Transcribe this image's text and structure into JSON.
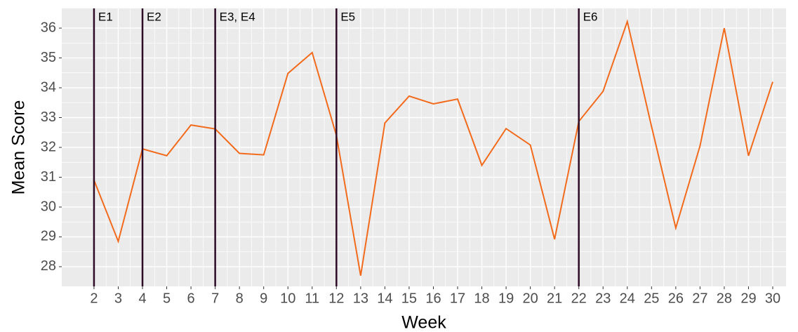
{
  "chart_data": {
    "type": "line",
    "x_label": "Week",
    "y_label": "Mean Score",
    "x": [
      2,
      3,
      4,
      5,
      6,
      7,
      8,
      9,
      10,
      11,
      12,
      13,
      14,
      15,
      16,
      17,
      18,
      19,
      20,
      21,
      22,
      23,
      24,
      25,
      26,
      27,
      28,
      29,
      30
    ],
    "series": [
      {
        "name": "Mean Score",
        "color": "#f26b1d",
        "values": [
          30.9,
          28.85,
          31.95,
          31.72,
          32.75,
          32.62,
          31.8,
          31.75,
          34.48,
          35.18,
          32.4,
          27.7,
          32.82,
          33.72,
          33.46,
          33.62,
          31.4,
          32.63,
          32.08,
          28.92,
          32.87,
          33.88,
          36.22,
          32.7,
          29.3,
          32.05,
          36.0,
          31.72,
          34.2
        ]
      }
    ],
    "events": [
      {
        "label": "E1",
        "week": 2
      },
      {
        "label": "E2",
        "week": 4
      },
      {
        "label": "E3, E4",
        "week": 7
      },
      {
        "label": "E5",
        "week": 12
      },
      {
        "label": "E6",
        "week": 22
      }
    ],
    "event_color": "#2d0a26",
    "xlim": [
      0.67,
      30.55
    ],
    "ylim": [
      27.34,
      36.66
    ],
    "xticks": [
      2,
      3,
      4,
      5,
      6,
      7,
      8,
      9,
      10,
      11,
      12,
      13,
      14,
      15,
      16,
      17,
      18,
      19,
      20,
      21,
      22,
      23,
      24,
      25,
      26,
      27,
      28,
      29,
      30
    ],
    "yticks": [
      28,
      29,
      30,
      31,
      32,
      33,
      34,
      35,
      36
    ],
    "grid": true
  }
}
